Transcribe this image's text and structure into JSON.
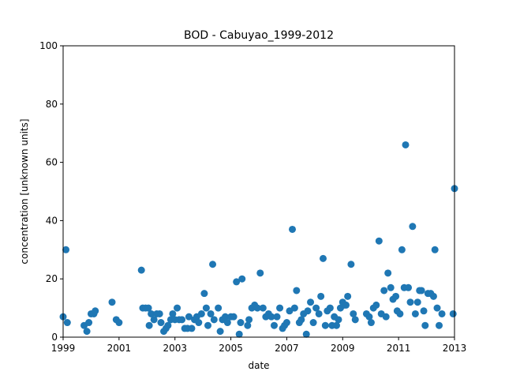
{
  "chart_data": {
    "type": "scatter",
    "title": "BOD - Cabuyao_1999-2012",
    "xlabel": "date",
    "ylabel": "concentration [unknown units]",
    "xlim": [
      1999,
      2013
    ],
    "ylim": [
      0,
      100
    ],
    "xticks": [
      "1999",
      "2001",
      "2003",
      "2005",
      "2007",
      "2009",
      "2011",
      "2013"
    ],
    "yticks": [
      "0",
      "20",
      "40",
      "60",
      "80",
      "100"
    ],
    "grid": false,
    "marker_color": "#1f77b4",
    "points": [
      [
        1999.0,
        7
      ],
      [
        1999.1,
        30
      ],
      [
        1999.15,
        5
      ],
      [
        1999.75,
        4
      ],
      [
        1999.85,
        2
      ],
      [
        1999.92,
        5
      ],
      [
        2000.0,
        8
      ],
      [
        2000.1,
        8
      ],
      [
        2000.15,
        9
      ],
      [
        2000.75,
        12
      ],
      [
        2000.9,
        6
      ],
      [
        2001.0,
        5
      ],
      [
        2001.8,
        23
      ],
      [
        2001.85,
        10
      ],
      [
        2001.95,
        10
      ],
      [
        2002.05,
        10
      ],
      [
        2002.08,
        4
      ],
      [
        2002.15,
        8
      ],
      [
        2002.25,
        6
      ],
      [
        2002.35,
        8
      ],
      [
        2002.45,
        8
      ],
      [
        2002.5,
        5
      ],
      [
        2002.6,
        2
      ],
      [
        2002.68,
        3
      ],
      [
        2002.75,
        4
      ],
      [
        2002.85,
        6
      ],
      [
        2002.92,
        8
      ],
      [
        2003.0,
        6
      ],
      [
        2003.08,
        10
      ],
      [
        2003.15,
        6
      ],
      [
        2003.25,
        6
      ],
      [
        2003.35,
        3
      ],
      [
        2003.45,
        3
      ],
      [
        2003.5,
        7
      ],
      [
        2003.6,
        3
      ],
      [
        2003.7,
        6
      ],
      [
        2003.78,
        7
      ],
      [
        2003.85,
        5
      ],
      [
        2003.95,
        8
      ],
      [
        2004.05,
        15
      ],
      [
        2004.12,
        10
      ],
      [
        2004.18,
        4
      ],
      [
        2004.28,
        8
      ],
      [
        2004.35,
        25
      ],
      [
        2004.4,
        6
      ],
      [
        2004.55,
        10
      ],
      [
        2004.62,
        2
      ],
      [
        2004.7,
        6
      ],
      [
        2004.8,
        7
      ],
      [
        2004.88,
        5
      ],
      [
        2005.0,
        7
      ],
      [
        2005.1,
        7
      ],
      [
        2005.2,
        19
      ],
      [
        2005.3,
        1
      ],
      [
        2005.35,
        5
      ],
      [
        2005.4,
        20
      ],
      [
        2005.6,
        4
      ],
      [
        2005.65,
        6
      ],
      [
        2005.75,
        10
      ],
      [
        2005.85,
        11
      ],
      [
        2005.95,
        10
      ],
      [
        2006.05,
        22
      ],
      [
        2006.15,
        10
      ],
      [
        2006.25,
        7
      ],
      [
        2006.35,
        8
      ],
      [
        2006.45,
        7
      ],
      [
        2006.55,
        4
      ],
      [
        2006.65,
        7
      ],
      [
        2006.75,
        10
      ],
      [
        2006.85,
        3
      ],
      [
        2006.92,
        4
      ],
      [
        2007.0,
        5
      ],
      [
        2007.1,
        9
      ],
      [
        2007.2,
        37
      ],
      [
        2007.28,
        10
      ],
      [
        2007.35,
        16
      ],
      [
        2007.45,
        5
      ],
      [
        2007.52,
        6
      ],
      [
        2007.6,
        8
      ],
      [
        2007.7,
        1
      ],
      [
        2007.75,
        9
      ],
      [
        2007.85,
        12
      ],
      [
        2007.95,
        5
      ],
      [
        2008.05,
        10
      ],
      [
        2008.15,
        8
      ],
      [
        2008.22,
        14
      ],
      [
        2008.3,
        27
      ],
      [
        2008.38,
        4
      ],
      [
        2008.45,
        9
      ],
      [
        2008.55,
        10
      ],
      [
        2008.62,
        4
      ],
      [
        2008.7,
        7
      ],
      [
        2008.78,
        4
      ],
      [
        2008.85,
        6
      ],
      [
        2008.92,
        10
      ],
      [
        2009.0,
        12
      ],
      [
        2009.05,
        11
      ],
      [
        2009.12,
        11
      ],
      [
        2009.18,
        14
      ],
      [
        2009.3,
        25
      ],
      [
        2009.38,
        8
      ],
      [
        2009.45,
        6
      ],
      [
        2009.85,
        8
      ],
      [
        2009.95,
        7
      ],
      [
        2010.02,
        5
      ],
      [
        2010.1,
        10
      ],
      [
        2010.2,
        11
      ],
      [
        2010.3,
        33
      ],
      [
        2010.38,
        8
      ],
      [
        2010.48,
        16
      ],
      [
        2010.55,
        7
      ],
      [
        2010.62,
        22
      ],
      [
        2010.72,
        17
      ],
      [
        2010.8,
        13
      ],
      [
        2010.9,
        14
      ],
      [
        2010.95,
        9
      ],
      [
        2011.05,
        8
      ],
      [
        2011.12,
        30
      ],
      [
        2011.2,
        17
      ],
      [
        2011.25,
        66
      ],
      [
        2011.35,
        17
      ],
      [
        2011.42,
        12
      ],
      [
        2011.5,
        38
      ],
      [
        2011.6,
        8
      ],
      [
        2011.68,
        12
      ],
      [
        2011.75,
        16
      ],
      [
        2011.82,
        16
      ],
      [
        2011.9,
        9
      ],
      [
        2011.95,
        4
      ],
      [
        2012.05,
        15
      ],
      [
        2012.15,
        15
      ],
      [
        2012.25,
        14
      ],
      [
        2012.3,
        30
      ],
      [
        2012.38,
        10
      ],
      [
        2012.45,
        4
      ],
      [
        2012.55,
        8
      ],
      [
        2012.95,
        8
      ],
      [
        2013.0,
        51
      ]
    ]
  }
}
